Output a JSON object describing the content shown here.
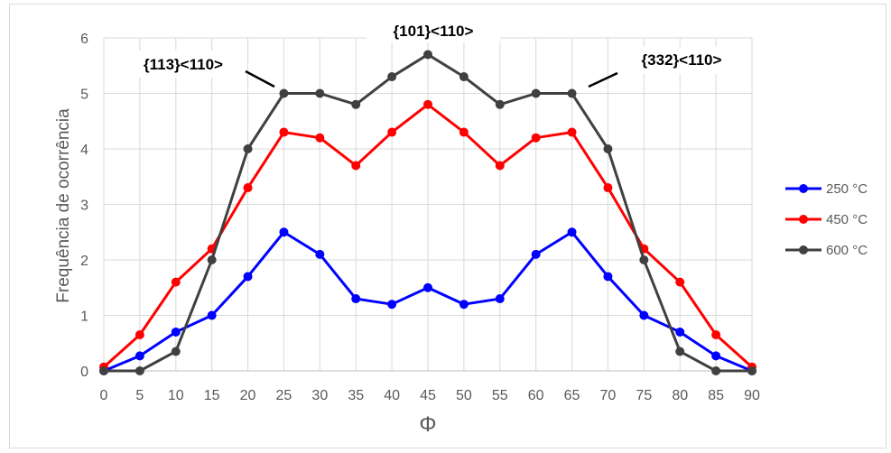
{
  "chart_data": {
    "type": "line",
    "xlabel": "Φ",
    "ylabel": "Frequência de ocorrência",
    "x": [
      0,
      5,
      10,
      15,
      20,
      25,
      30,
      35,
      40,
      45,
      50,
      55,
      60,
      65,
      70,
      75,
      80,
      85,
      90
    ],
    "xlim": [
      0,
      90
    ],
    "ylim": [
      0,
      6
    ],
    "yticks": [
      0,
      1,
      2,
      3,
      4,
      5,
      6
    ],
    "grid": true,
    "legend_position": "right",
    "series": [
      {
        "name": "250 °C",
        "color": "#0000ff",
        "values": [
          0,
          0.27,
          0.7,
          1.0,
          1.7,
          2.5,
          2.1,
          1.3,
          1.2,
          1.5,
          1.2,
          1.3,
          2.1,
          2.5,
          1.7,
          1.0,
          0.7,
          0.27,
          0
        ]
      },
      {
        "name": "450 °C",
        "color": "#ff0000",
        "values": [
          0.07,
          0.65,
          1.6,
          2.2,
          3.3,
          4.3,
          4.2,
          3.7,
          4.3,
          4.8,
          4.3,
          3.7,
          4.2,
          4.3,
          3.3,
          2.2,
          1.6,
          0.65,
          0.07
        ]
      },
      {
        "name": "600 °C",
        "color": "#404040",
        "values": [
          0,
          0,
          0.35,
          2.0,
          4.0,
          5.0,
          5.0,
          4.8,
          5.3,
          5.7,
          5.3,
          4.8,
          5.0,
          5.0,
          4.0,
          2.0,
          0.35,
          0,
          0
        ]
      }
    ],
    "annotations": [
      "{113}<110>",
      "{101}<110>",
      "{332}<110>"
    ]
  }
}
